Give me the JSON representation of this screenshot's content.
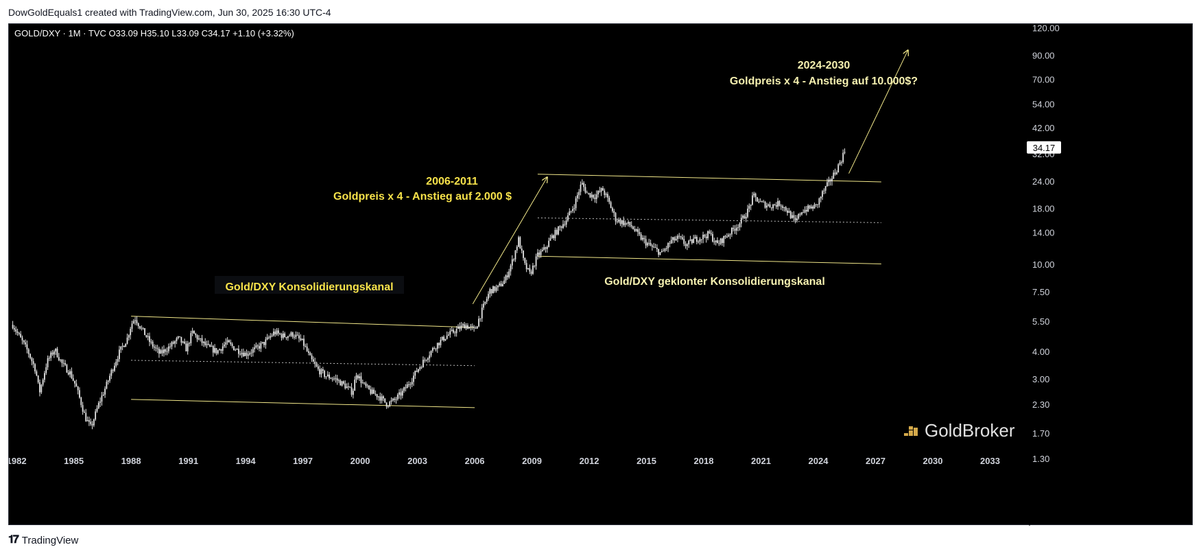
{
  "header": {
    "attribution": "DowGoldEquals1 created with TradingView.com, Jun 30, 2025 16:30 UTC-4"
  },
  "footer": {
    "brand": "TradingView",
    "brand_icon": "tradingview-logo-icon"
  },
  "legend": {
    "symbol": "GOLD/DXY · 1M · TVC",
    "open": "O33.09",
    "high": "H35.10",
    "low": "L33.09",
    "close": "C34.17",
    "change": "+1.10 (+3.32%)"
  },
  "price_tag": "34.17",
  "watermark": {
    "text": "GoldBroker",
    "icon": "goldbroker-bars-icon"
  },
  "annotations": {
    "channel_1_label": "Gold/DXY Konsolidierungskanal",
    "period_1_title": "2006-2011",
    "period_1_text": "Goldpreis x 4 - Anstieg auf 2.000 $",
    "channel_2_label": "Gold/DXY geklonter Konsolidierungskanal",
    "period_2_title": "2024-2030",
    "period_2_text": "Goldpreis x 4 - Anstieg auf 10.000$?"
  },
  "colors": {
    "background": "#000000",
    "candles": "#e6e6e6",
    "channel": "#f2e88a",
    "label_yellow": "#f7e24a",
    "label_light": "#f5f0b0",
    "axis_text": "#d1d4dc"
  },
  "chart_data": {
    "type": "candlestick",
    "symbol": "GOLD/DXY",
    "interval": "1M",
    "scale": "log",
    "x_ticks": [
      "1982",
      "1985",
      "1988",
      "1991",
      "1994",
      "1997",
      "2000",
      "2003",
      "2006",
      "2009",
      "2012",
      "2015",
      "2018",
      "2021",
      "2024",
      "2027",
      "2030",
      "2033"
    ],
    "y_ticks": [
      "120.00",
      "90.00",
      "70.00",
      "54.00",
      "42.00",
      "32.00",
      "24.00",
      "18.00",
      "14.00",
      "10.00",
      "7.50",
      "5.50",
      "4.00",
      "3.00",
      "2.30",
      "1.70",
      "1.30"
    ],
    "ylim": [
      1.15,
      125
    ],
    "xlim": [
      1981.6,
      2034.6
    ],
    "series": [
      {
        "points": [
          [
            1981.8,
            5.3
          ],
          [
            1982.2,
            4.6
          ],
          [
            1982.6,
            4.0
          ],
          [
            1983.0,
            3.3
          ],
          [
            1983.2,
            2.6
          ],
          [
            1983.6,
            3.6
          ],
          [
            1984.0,
            4.1
          ],
          [
            1984.4,
            3.5
          ],
          [
            1984.8,
            3.2
          ],
          [
            1985.1,
            2.8
          ],
          [
            1985.4,
            2.3
          ],
          [
            1985.6,
            2.0
          ],
          [
            1985.9,
            1.8
          ],
          [
            1986.3,
            2.3
          ],
          [
            1986.7,
            2.8
          ],
          [
            1987.0,
            3.3
          ],
          [
            1987.4,
            4.0
          ],
          [
            1987.8,
            4.6
          ],
          [
            1988.0,
            5.3
          ],
          [
            1988.2,
            5.7
          ],
          [
            1988.6,
            5.0
          ],
          [
            1989.0,
            4.4
          ],
          [
            1989.5,
            3.9
          ],
          [
            1990.0,
            4.2
          ],
          [
            1990.5,
            4.6
          ],
          [
            1990.9,
            4.1
          ],
          [
            1991.2,
            4.9
          ],
          [
            1991.6,
            4.5
          ],
          [
            1992.0,
            4.2
          ],
          [
            1992.5,
            4.0
          ],
          [
            1993.0,
            4.4
          ],
          [
            1993.5,
            4.1
          ],
          [
            1994.0,
            3.9
          ],
          [
            1994.5,
            4.1
          ],
          [
            1995.0,
            4.4
          ],
          [
            1995.5,
            4.9
          ],
          [
            1996.0,
            4.7
          ],
          [
            1996.5,
            4.8
          ],
          [
            1997.0,
            4.4
          ],
          [
            1997.4,
            3.7
          ],
          [
            1997.8,
            3.3
          ],
          [
            1998.2,
            3.1
          ],
          [
            1998.7,
            3.0
          ],
          [
            1999.2,
            2.8
          ],
          [
            1999.6,
            2.6
          ],
          [
            1999.8,
            3.2
          ],
          [
            2000.2,
            2.8
          ],
          [
            2000.6,
            2.6
          ],
          [
            2001.0,
            2.5
          ],
          [
            2001.4,
            2.3
          ],
          [
            2001.8,
            2.4
          ],
          [
            2002.2,
            2.6
          ],
          [
            2002.6,
            2.9
          ],
          [
            2003.0,
            3.3
          ],
          [
            2003.5,
            3.8
          ],
          [
            2004.0,
            4.3
          ],
          [
            2004.5,
            4.7
          ],
          [
            2005.0,
            5.0
          ],
          [
            2005.5,
            5.3
          ],
          [
            2006.0,
            5.0
          ],
          [
            2006.4,
            6.2
          ],
          [
            2006.8,
            7.6
          ],
          [
            2007.2,
            7.8
          ],
          [
            2007.6,
            8.5
          ],
          [
            2008.0,
            10.5
          ],
          [
            2008.3,
            13.0
          ],
          [
            2008.6,
            10.0
          ],
          [
            2008.9,
            9.0
          ],
          [
            2009.3,
            11.0
          ],
          [
            2009.7,
            11.8
          ],
          [
            2010.0,
            13.2
          ],
          [
            2010.4,
            14.5
          ],
          [
            2010.8,
            16.0
          ],
          [
            2011.2,
            18.5
          ],
          [
            2011.6,
            23.5
          ],
          [
            2011.9,
            21.0
          ],
          [
            2012.3,
            20.5
          ],
          [
            2012.7,
            22.0
          ],
          [
            2013.0,
            19.5
          ],
          [
            2013.4,
            16.0
          ],
          [
            2013.8,
            15.5
          ],
          [
            2014.2,
            15.0
          ],
          [
            2014.6,
            13.5
          ],
          [
            2015.0,
            12.5
          ],
          [
            2015.4,
            11.8
          ],
          [
            2015.8,
            11.2
          ],
          [
            2016.3,
            12.8
          ],
          [
            2016.7,
            13.2
          ],
          [
            2017.1,
            12.2
          ],
          [
            2017.5,
            13.0
          ],
          [
            2017.9,
            13.3
          ],
          [
            2018.3,
            13.8
          ],
          [
            2018.7,
            12.3
          ],
          [
            2019.1,
            13.3
          ],
          [
            2019.5,
            14.3
          ],
          [
            2019.9,
            15.5
          ],
          [
            2020.3,
            17.5
          ],
          [
            2020.6,
            20.5
          ],
          [
            2021.0,
            19.0
          ],
          [
            2021.5,
            18.5
          ],
          [
            2022.0,
            19.0
          ],
          [
            2022.4,
            17.5
          ],
          [
            2022.8,
            15.5
          ],
          [
            2023.1,
            17.5
          ],
          [
            2023.5,
            18.0
          ],
          [
            2023.9,
            18.5
          ],
          [
            2024.2,
            21.0
          ],
          [
            2024.6,
            24.0
          ],
          [
            2024.9,
            26.5
          ],
          [
            2025.2,
            30.0
          ],
          [
            2025.45,
            34.17
          ]
        ]
      }
    ],
    "channels": [
      {
        "name": "Gold/DXY Konsolidierungskanal",
        "upper": [
          [
            1988.0,
            5.8
          ],
          [
            2006.0,
            5.15
          ]
        ],
        "middle": [
          [
            1988.0,
            3.65
          ],
          [
            2006.0,
            3.45
          ]
        ],
        "lower": [
          [
            1988.0,
            2.42
          ],
          [
            2006.0,
            2.22
          ]
        ]
      },
      {
        "name": "Gold/DXY geklonter Konsolidierungskanal",
        "upper": [
          [
            2009.3,
            25.8
          ],
          [
            2027.3,
            23.8
          ]
        ],
        "middle": [
          [
            2009.3,
            16.3
          ],
          [
            2027.3,
            15.5
          ]
        ],
        "lower": [
          [
            2009.3,
            10.9
          ],
          [
            2027.3,
            10.05
          ]
        ]
      }
    ],
    "arrows": [
      {
        "from": [
          2005.9,
          6.6
        ],
        "to": [
          2009.8,
          25.0
        ]
      },
      {
        "from": [
          2025.6,
          26.0
        ],
        "to": [
          2028.7,
          95.0
        ]
      }
    ]
  }
}
